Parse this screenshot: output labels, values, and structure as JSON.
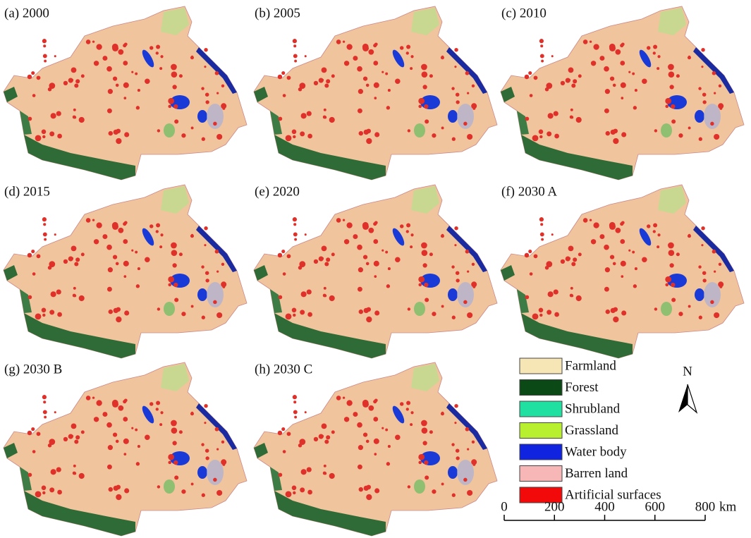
{
  "panels": [
    {
      "label": "(a) 2000"
    },
    {
      "label": "(b) 2005"
    },
    {
      "label": "(c) 2010"
    },
    {
      "label": "(d) 2015"
    },
    {
      "label": "(e) 2020"
    },
    {
      "label": "(f) 2030 A"
    },
    {
      "label": "(g) 2030 B"
    },
    {
      "label": "(h) 2030 C"
    }
  ],
  "legend": [
    {
      "name": "Farmland",
      "color": "#f7e6b5"
    },
    {
      "name": "Forest",
      "color": "#0b4a16"
    },
    {
      "name": "Shrubland",
      "color": "#1fe0a0"
    },
    {
      "name": "Grassland",
      "color": "#b8f030"
    },
    {
      "name": "Water body",
      "color": "#1024e0"
    },
    {
      "name": "Barren land",
      "color": "#f7b7b7"
    },
    {
      "name": "Artificial surfaces",
      "color": "#f20a0a"
    }
  ],
  "north": "N",
  "scale": {
    "ticks": [
      0,
      200,
      400,
      600,
      800
    ],
    "unit": "km"
  }
}
